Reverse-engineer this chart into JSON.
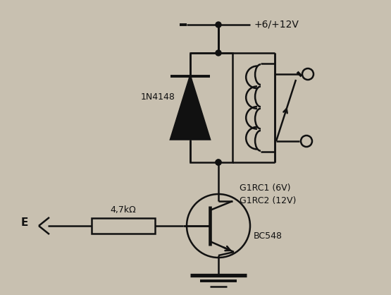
{
  "bg_color": "#c8c0b0",
  "line_color": "#111111",
  "lw": 1.8,
  "figsize": [
    5.55,
    4.18
  ],
  "dpi": 100,
  "labels": {
    "vcc": "+6/+12V",
    "diode": "1N4148",
    "resistor": "4,7kΩ",
    "transistor": "BC548",
    "relay1": "G1RC1 (6V)",
    "relay2": "G1RC2 (12V)",
    "input": "E"
  }
}
